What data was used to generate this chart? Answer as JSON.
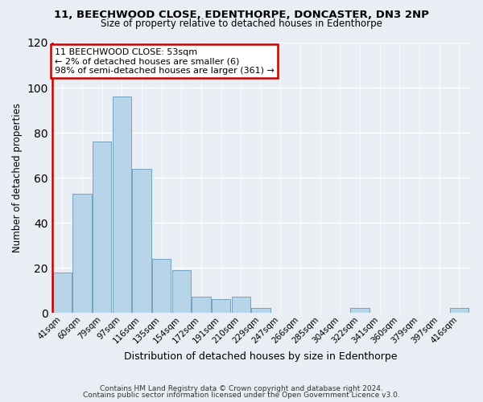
{
  "title": "11, BEECHWOOD CLOSE, EDENTHORPE, DONCASTER, DN3 2NP",
  "subtitle": "Size of property relative to detached houses in Edenthorpe",
  "xlabel": "Distribution of detached houses by size in Edenthorpe",
  "ylabel": "Number of detached properties",
  "bar_labels": [
    "41sqm",
    "60sqm",
    "79sqm",
    "97sqm",
    "116sqm",
    "135sqm",
    "154sqm",
    "172sqm",
    "191sqm",
    "210sqm",
    "229sqm",
    "247sqm",
    "266sqm",
    "285sqm",
    "304sqm",
    "322sqm",
    "341sqm",
    "360sqm",
    "379sqm",
    "397sqm",
    "416sqm"
  ],
  "bar_values": [
    18,
    53,
    76,
    96,
    64,
    24,
    19,
    7,
    6,
    7,
    2,
    0,
    0,
    0,
    0,
    2,
    0,
    0,
    0,
    0,
    2
  ],
  "bar_color": "#b8d4e8",
  "bar_edge_color": "#6699bb",
  "highlight_line_color": "#cc0000",
  "annotation_title": "11 BEECHWOOD CLOSE: 53sqm",
  "annotation_line1": "← 2% of detached houses are smaller (6)",
  "annotation_line2": "98% of semi-detached houses are larger (361) →",
  "annotation_box_color": "#ffffff",
  "annotation_box_edge_color": "#cc0000",
  "ylim": [
    0,
    120
  ],
  "yticks": [
    0,
    20,
    40,
    60,
    80,
    100,
    120
  ],
  "footer_line1": "Contains HM Land Registry data © Crown copyright and database right 2024.",
  "footer_line2": "Contains public sector information licensed under the Open Government Licence v3.0.",
  "bg_color": "#e8eef4"
}
